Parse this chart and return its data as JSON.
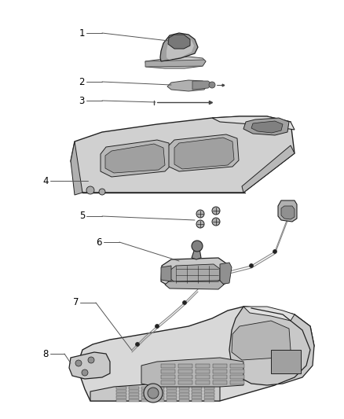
{
  "bg_color": "#ffffff",
  "lc": "#444444",
  "dc": "#222222",
  "gc": "#999999",
  "lgc": "#bbbbbb",
  "fig_width": 4.38,
  "fig_height": 5.33,
  "dpi": 100
}
